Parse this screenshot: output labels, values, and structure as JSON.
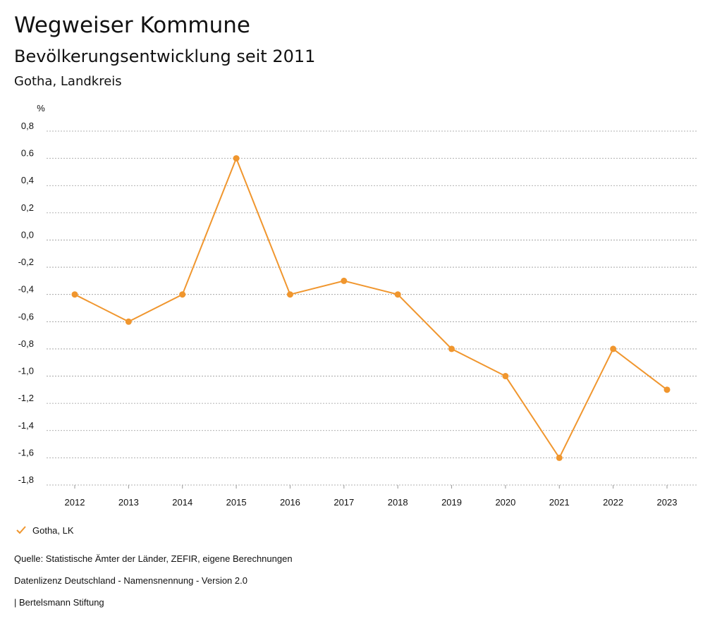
{
  "header": {
    "title": "Wegweiser Kommune",
    "subtitle": "Bevölkerungsentwicklung seit 2011",
    "region": "Gotha, Landkreis"
  },
  "colors": {
    "series": "#f0962e",
    "grid": "#999999",
    "text": "#111111"
  },
  "chart_data": {
    "type": "line",
    "title": "Bevölkerungsentwicklung seit 2011",
    "ylabel": "%",
    "xlabel": "",
    "categories": [
      "2012",
      "2013",
      "2014",
      "2015",
      "2016",
      "2017",
      "2018",
      "2019",
      "2020",
      "2021",
      "2022",
      "2023"
    ],
    "series": [
      {
        "name": "Gotha, LK",
        "values": [
          -0.4,
          -0.6,
          -0.4,
          0.6,
          -0.4,
          -0.3,
          -0.4,
          -0.8,
          -1.0,
          -1.6,
          -0.8,
          -1.1
        ]
      }
    ],
    "ylim": [
      -1.8,
      0.8
    ],
    "yticks": [
      0.8,
      0.6,
      0.4,
      0.2,
      0.0,
      -0.2,
      -0.4,
      -0.6,
      -0.8,
      -1.0,
      -1.2,
      -1.4,
      -1.6,
      -1.8
    ],
    "ytick_labels": [
      "0,8",
      "0.6",
      "0,4",
      "0,2",
      "0,0",
      "-0,2",
      "-0,4",
      "-0,6",
      "-0,8",
      "-1,0",
      "-1,2",
      "-1,4",
      "-1,6",
      "-1,8"
    ],
    "grid": true,
    "legend_position": "bottom-left"
  },
  "legend": {
    "label": "Gotha, LK"
  },
  "footer": {
    "source": "Quelle: Statistische Ämter der Länder, ZEFIR, eigene Berechnungen",
    "license": "Datenlizenz Deutschland - Namensnennung - Version 2.0",
    "publisher": "| Bertelsmann Stiftung"
  }
}
